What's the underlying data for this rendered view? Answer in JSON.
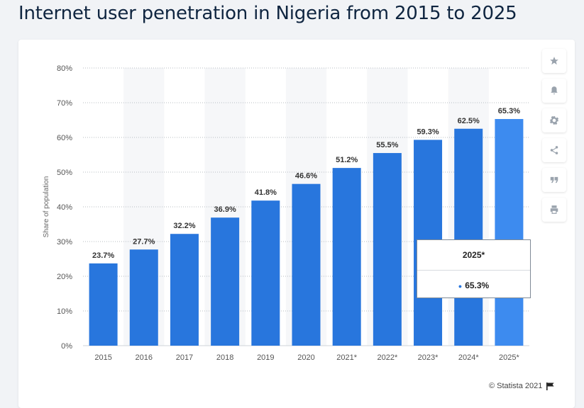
{
  "title": "Internet user penetration in Nigeria from 2015 to 2025",
  "chart_data": {
    "type": "bar",
    "categories": [
      "2015",
      "2016",
      "2017",
      "2018",
      "2019",
      "2020",
      "2021*",
      "2022*",
      "2023*",
      "2024*",
      "2025*"
    ],
    "values": [
      23.7,
      27.7,
      32.2,
      36.9,
      41.8,
      46.6,
      51.2,
      55.5,
      59.3,
      62.5,
      65.3
    ],
    "value_labels": [
      "23.7%",
      "27.7%",
      "32.2%",
      "36.9%",
      "41.8%",
      "46.6%",
      "51.2%",
      "55.5%",
      "59.3%",
      "62.5%",
      "65.3%"
    ],
    "ylabel": "Share of population",
    "xlabel": "",
    "ylim": [
      0,
      80
    ],
    "yticks": [
      "0%",
      "10%",
      "20%",
      "30%",
      "40%",
      "50%",
      "60%",
      "70%",
      "80%"
    ],
    "grid": true,
    "highlighted_category": "2025*",
    "colors": {
      "bar": "#2876dd",
      "bar_highlight": "#3d8bef",
      "band": "#f6f7f9",
      "grid": "#b7bcc2"
    }
  },
  "tooltip": {
    "title": "2025*",
    "value": "65.3%"
  },
  "toolbar": {
    "items": [
      "star-icon",
      "bell-icon",
      "gear-icon",
      "share-icon",
      "quote-icon",
      "print-icon"
    ]
  },
  "footer": {
    "text": "© Statista 2021"
  }
}
